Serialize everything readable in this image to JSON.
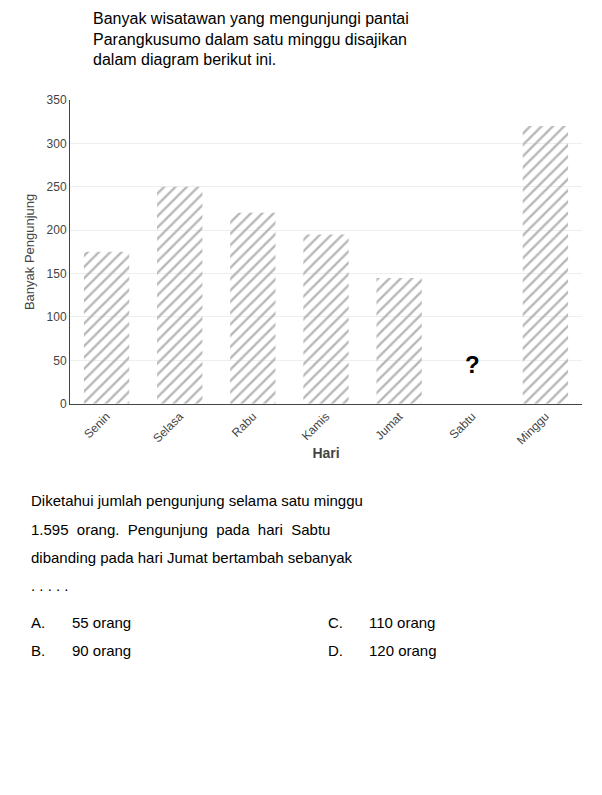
{
  "chart_data": {
    "type": "bar",
    "title": [
      "Banyak wisatawan yang mengunjungi pantai",
      "Parangkusumo dalam satu minggu disajikan",
      "dalam diagram berikut ini."
    ],
    "categories": [
      "Senin",
      "Selasa",
      "Rabu",
      "Kamis",
      "Jumat",
      "Sabtu",
      "Minggu"
    ],
    "values": [
      175,
      250,
      220,
      195,
      145,
      0,
      320
    ],
    "color": "#b8b8b8",
    "xlabel": "Hari",
    "ylabel": "Banyak Pengunjung",
    "ylim": [
      0,
      350
    ],
    "yticks": [
      0,
      50,
      100,
      150,
      200,
      250,
      300,
      350
    ],
    "grid": true,
    "annotations": [
      {
        "text": "?",
        "category": "Sabtu",
        "y": 45
      },
      {
        "text": "Diketahui jumlah pengunjung selama satu minggu"
      },
      {
        "text": "1.595  orang.  Pengunjung  pada  hari  Sabtu"
      },
      {
        "text": "dibanding pada hari Jumat bertambah sebanyak"
      },
      {
        "text": ". . . . ."
      },
      {
        "text": "A."
      },
      {
        "text": "55 orang"
      },
      {
        "text": "B."
      },
      {
        "text": "90 orang"
      },
      {
        "text": "C."
      },
      {
        "text": "110 orang"
      },
      {
        "text": "D."
      },
      {
        "text": "120 orang"
      }
    ]
  }
}
